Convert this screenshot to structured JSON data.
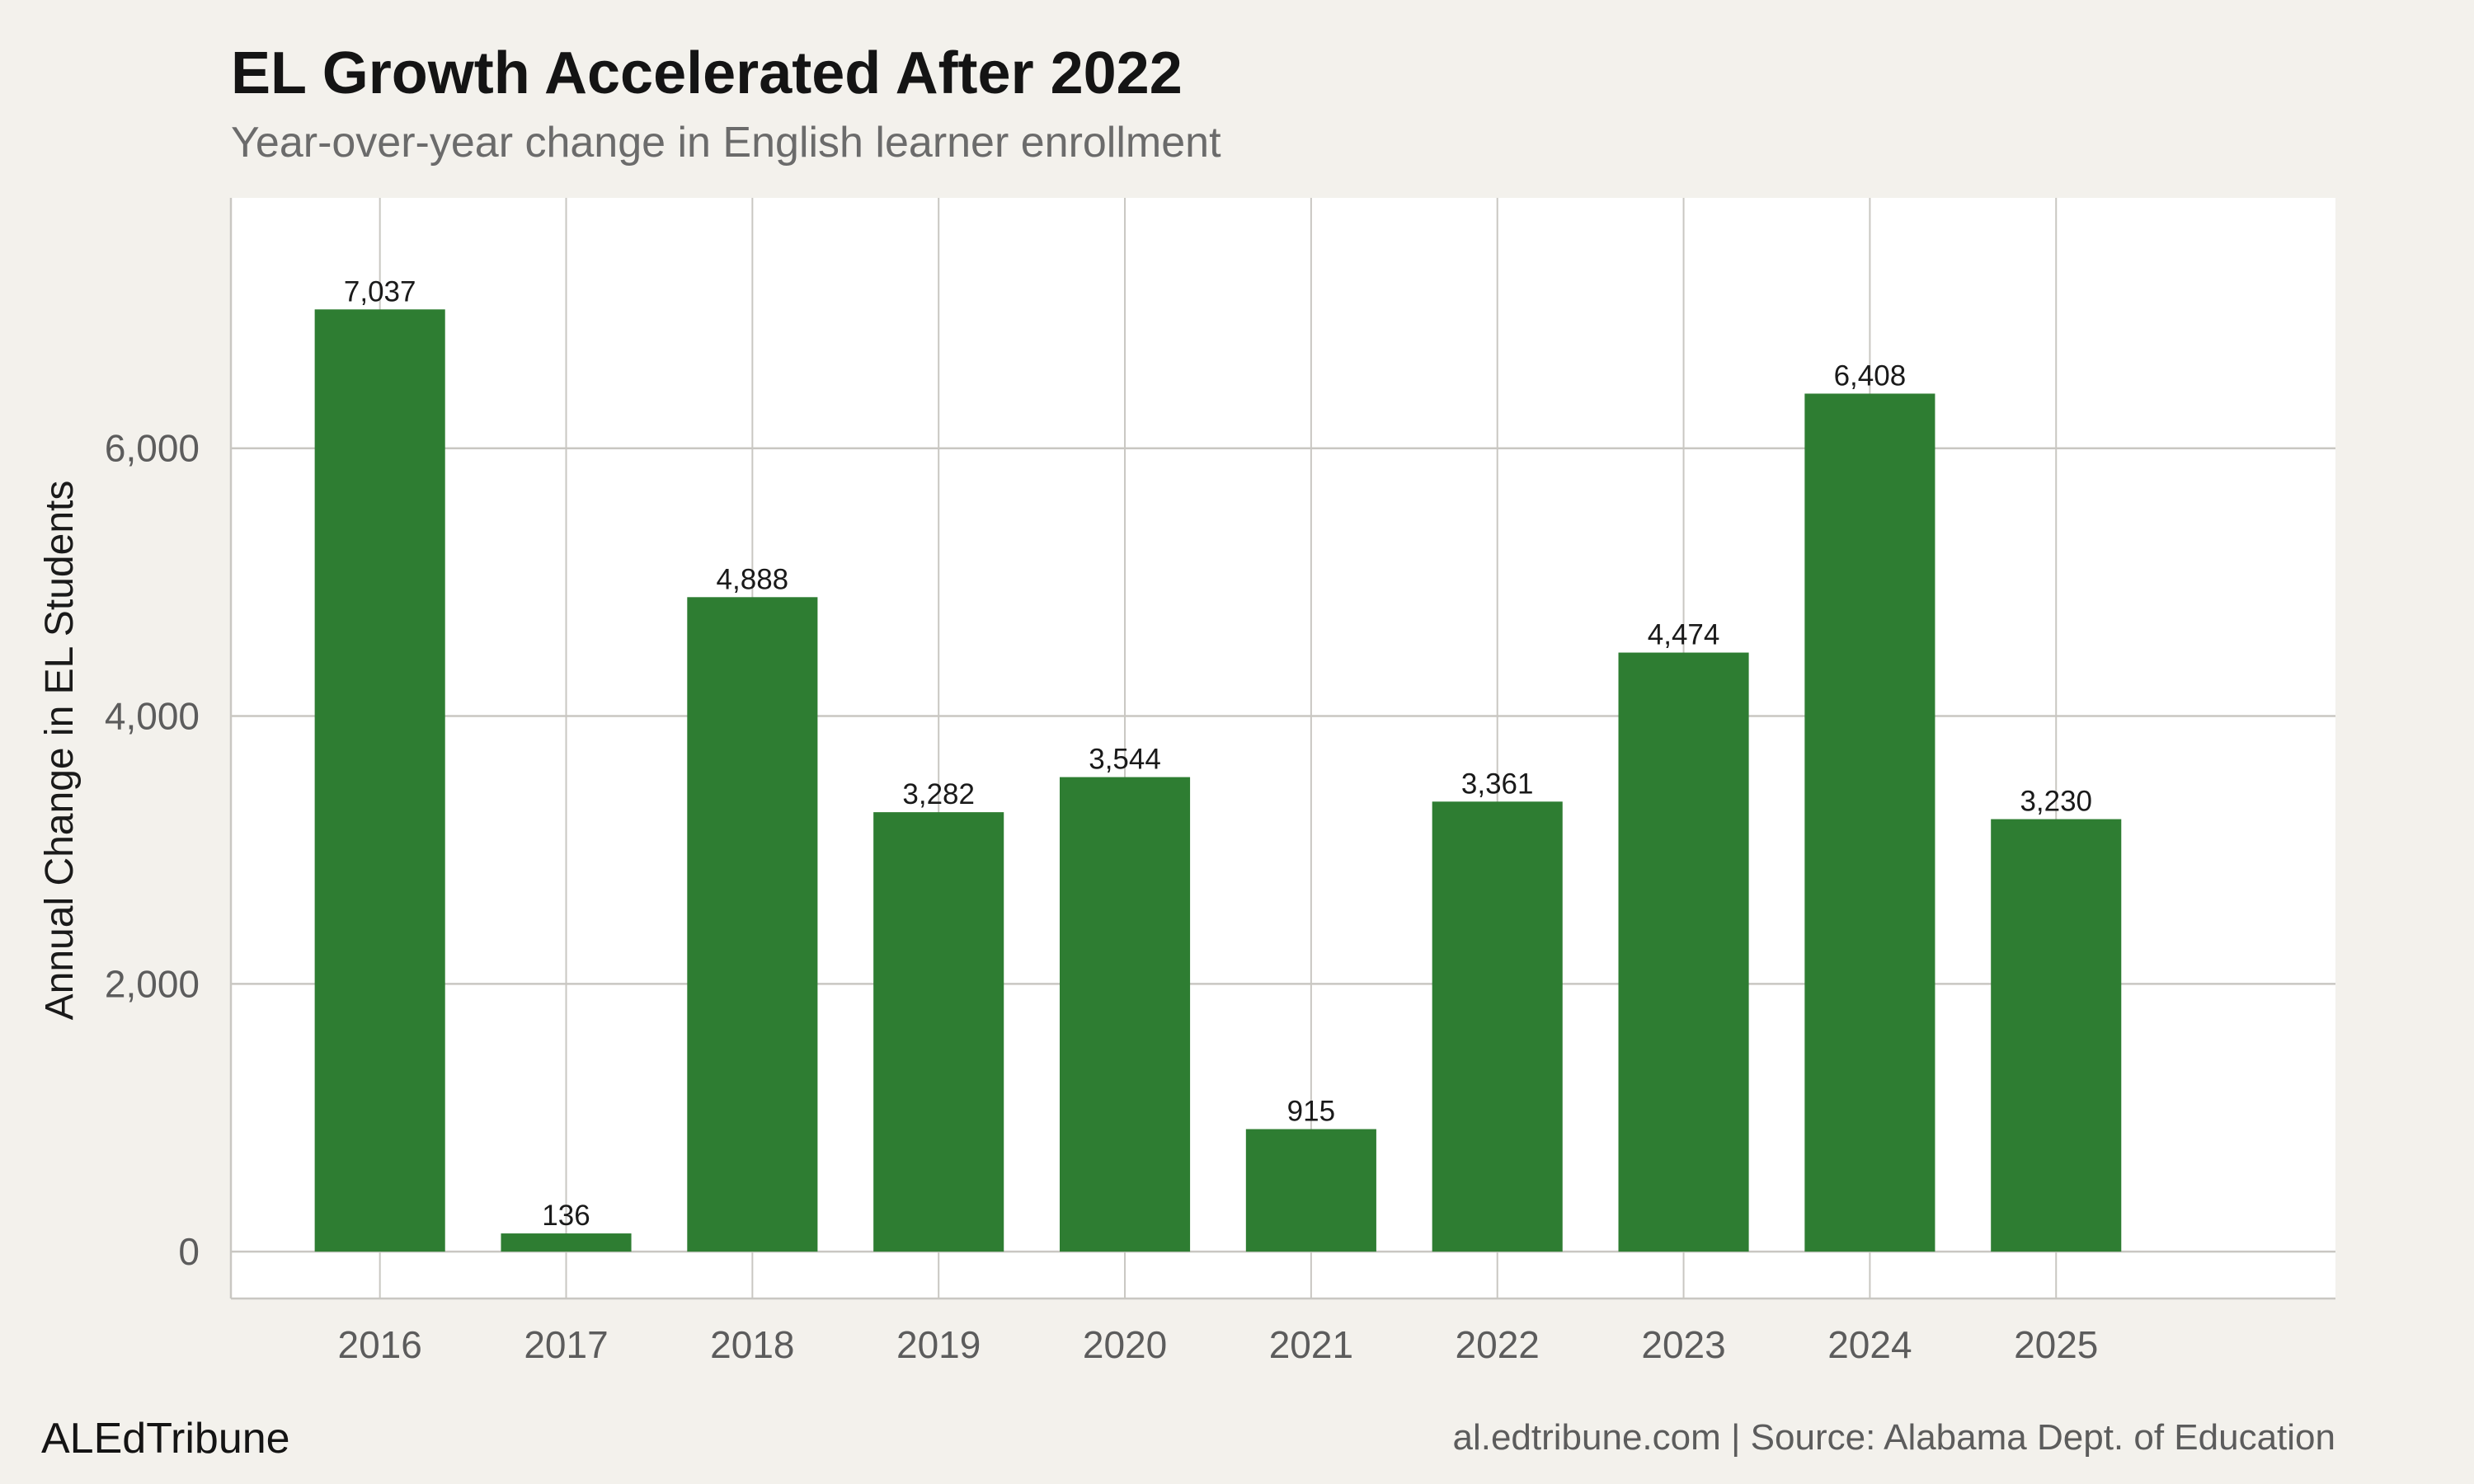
{
  "footer": {
    "brand": "ALEdTribune",
    "source": "al.edtribune.com | Source: Alabama Dept. of Education"
  },
  "colors": {
    "bar": "#2e7d32",
    "background": "#f3f1ec",
    "panel": "#ffffff",
    "grid": "#c9c7c2"
  },
  "chart_data": {
    "type": "bar",
    "title": "EL Growth Accelerated After 2022",
    "subtitle": "Year-over-year change in English learner enrollment",
    "xlabel": "",
    "ylabel": "Annual Change in EL Students",
    "categories": [
      "2016",
      "2017",
      "2018",
      "2019",
      "2020",
      "2021",
      "2022",
      "2023",
      "2024",
      "2025"
    ],
    "values": [
      7037,
      136,
      4888,
      3282,
      3544,
      915,
      3361,
      4474,
      6408,
      3230
    ],
    "value_labels": [
      "7,037",
      "136",
      "4,888",
      "3,282",
      "3,544",
      "915",
      "3,361",
      "4,474",
      "6,408",
      "3,230"
    ],
    "y_ticks": [
      0,
      2000,
      4000,
      6000
    ],
    "y_tick_labels": [
      "0",
      "2,000",
      "4,000",
      "6,000"
    ],
    "ylim": [
      -350,
      7870
    ],
    "xlim": [
      2015.2,
      2026.5
    ],
    "grid": true,
    "legend": "none"
  }
}
